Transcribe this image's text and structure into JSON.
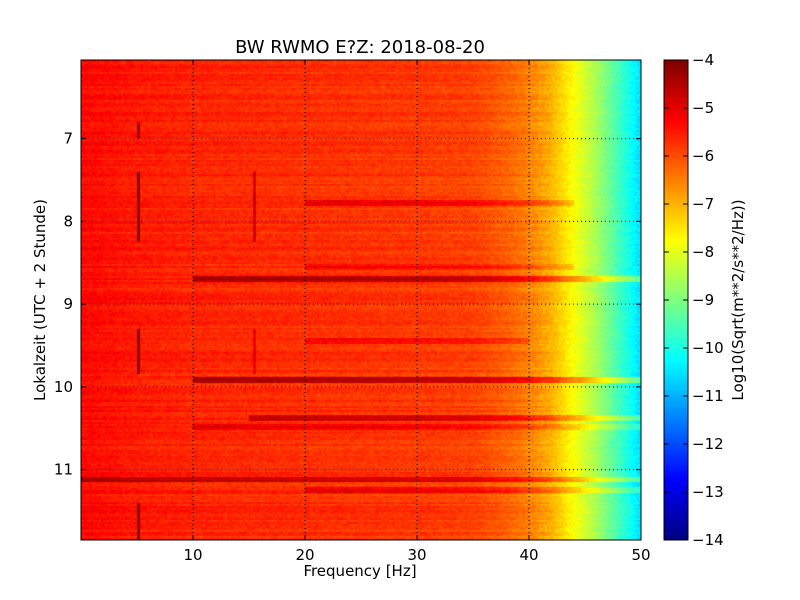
{
  "chart_data": {
    "type": "heatmap",
    "title": "BW RWMO E?Z: 2018-08-20",
    "xlabel": "Frequency [Hz]",
    "ylabel": "Lokalzeit (UTC + 2 Stunde)",
    "colorbar_label": "Log10(Sqrt(m**2/s**2/Hz))",
    "colormap": "jet",
    "xlim": [
      0,
      50
    ],
    "ylim": [
      6.05,
      11.85
    ],
    "y_inverted": true,
    "x_ticks": [
      "10",
      "20",
      "30",
      "40",
      "50"
    ],
    "x_tick_values": [
      10,
      20,
      30,
      40,
      50
    ],
    "y_ticks": [
      "7",
      "8",
      "9",
      "10",
      "11"
    ],
    "y_tick_values": [
      7,
      8,
      9,
      10,
      11
    ],
    "clim": [
      -14,
      -4
    ],
    "colorbar_ticks": [
      "−4",
      "−5",
      "−6",
      "−7",
      "−8",
      "−9",
      "−10",
      "−11",
      "−12",
      "−13",
      "−14"
    ],
    "colorbar_tick_values": [
      -4,
      -5,
      -6,
      -7,
      -8,
      -9,
      -10,
      -11,
      -12,
      -13,
      -14
    ],
    "grid": true,
    "spectrum_profile": {
      "frequency": [
        0,
        5,
        10,
        20,
        30,
        35,
        38,
        40,
        42,
        43,
        44,
        45,
        46,
        47,
        48,
        49,
        50
      ],
      "log_amplitude": [
        -5.3,
        -5.5,
        -5.6,
        -5.7,
        -5.8,
        -5.9,
        -6.2,
        -6.5,
        -7.0,
        -7.4,
        -7.8,
        -8.2,
        -8.6,
        -9.1,
        -9.6,
        -10.1,
        -10.6
      ]
    },
    "high_energy_bands": [
      {
        "time": 7.78,
        "f_start": 20,
        "f_end": 44,
        "delta": 0.6
      },
      {
        "time": 8.55,
        "f_start": 20,
        "f_end": 44,
        "delta": 0.5
      },
      {
        "time": 8.7,
        "f_start": 10,
        "f_end": 50,
        "delta": 1.2
      },
      {
        "time": 9.45,
        "f_start": 20,
        "f_end": 40,
        "delta": 0.5
      },
      {
        "time": 9.92,
        "f_start": 10,
        "f_end": 50,
        "delta": 1.3
      },
      {
        "time": 10.38,
        "f_start": 15,
        "f_end": 50,
        "delta": 0.9
      },
      {
        "time": 10.48,
        "f_start": 10,
        "f_end": 50,
        "delta": 0.6
      },
      {
        "time": 11.12,
        "f_start": 0,
        "f_end": 50,
        "delta": 0.9
      },
      {
        "time": 11.25,
        "f_start": 20,
        "f_end": 50,
        "delta": 0.6
      }
    ],
    "vertical_features": [
      {
        "frequency": 5.1,
        "t_start": 6.8,
        "t_end": 7.0,
        "delta": 1.2
      },
      {
        "frequency": 5.1,
        "t_start": 7.4,
        "t_end": 8.25,
        "delta": 1.5
      },
      {
        "frequency": 5.1,
        "t_start": 9.3,
        "t_end": 9.85,
        "delta": 1.5
      },
      {
        "frequency": 5.1,
        "t_start": 11.4,
        "t_end": 11.85,
        "delta": 1.5
      },
      {
        "frequency": 15.5,
        "t_start": 7.4,
        "t_end": 8.25,
        "delta": 0.9
      },
      {
        "frequency": 15.5,
        "t_start": 9.3,
        "t_end": 9.85,
        "delta": 0.6
      }
    ]
  }
}
